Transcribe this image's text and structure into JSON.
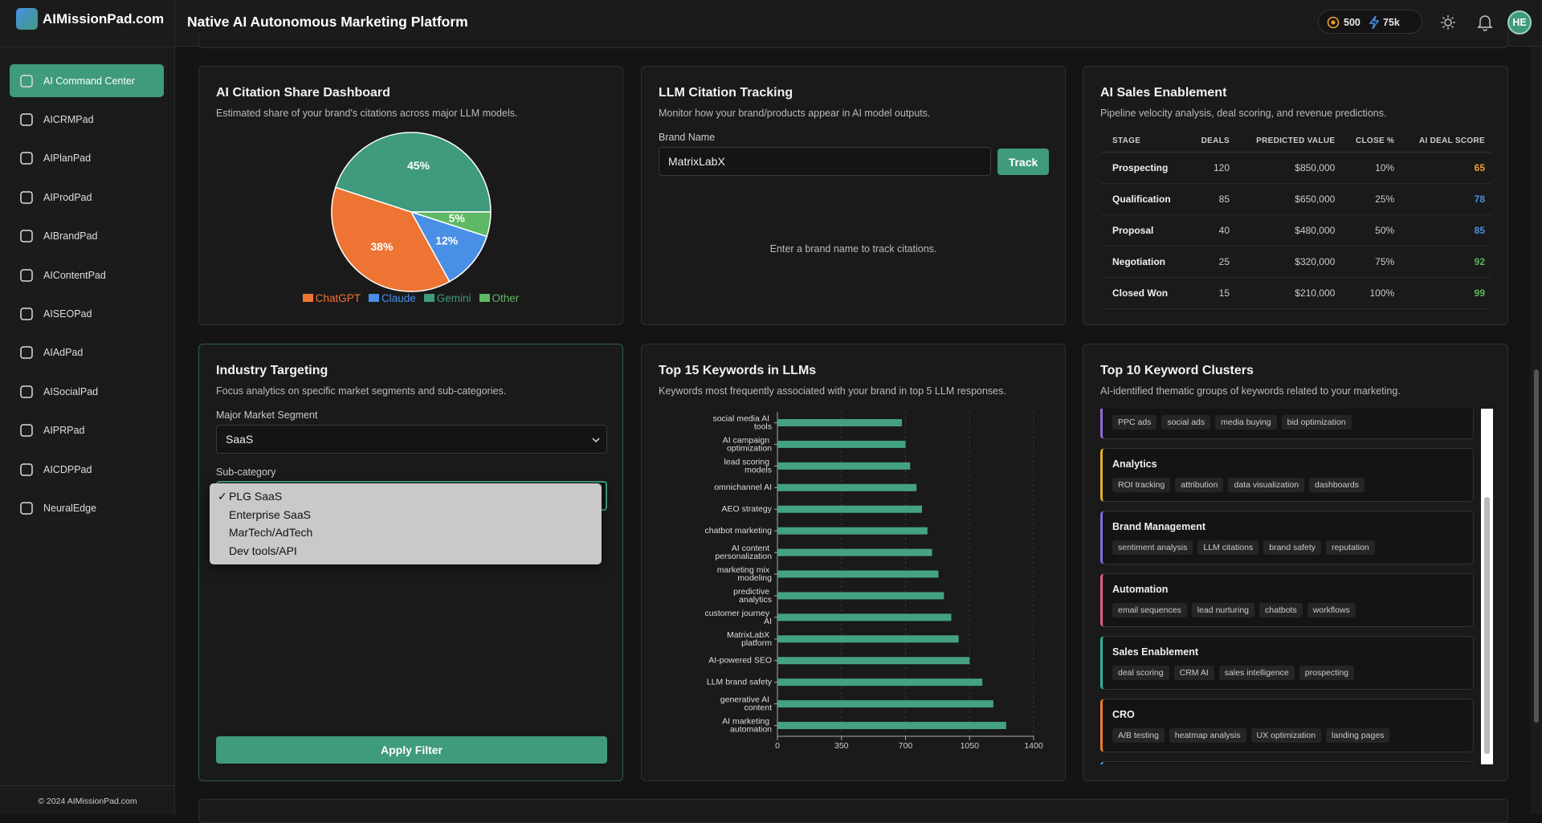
{
  "header": {
    "brand": "AIMissionPad.com",
    "title": "Native AI Autonomous Marketing Platform",
    "credits": "500",
    "energy": "75k",
    "avatar": "HE"
  },
  "sidebar": {
    "items": [
      "AI Command Center",
      "AICRMPad",
      "AIPlanPad",
      "AIProdPad",
      "AIBrandPad",
      "AIContentPad",
      "AISEOPad",
      "AIAdPad",
      "AISocialPad",
      "AIPRPad",
      "AICDPPad",
      "NeuralEdge"
    ],
    "active": 0,
    "footer": "© 2024 AIMissionPad.com"
  },
  "citation_tracking": {
    "title": "LLM Citation Tracking",
    "subtitle": "Monitor how your brand/products appear in AI model outputs.",
    "label": "Brand Name",
    "input": "MatrixLabX",
    "button": "Track",
    "empty": "Enter a brand name to track citations."
  },
  "sales": {
    "title": "AI Sales Enablement",
    "subtitle": "Pipeline velocity analysis, deal scoring, and revenue predictions.",
    "columns": [
      "STAGE",
      "DEALS",
      "PREDICTED VALUE",
      "CLOSE %",
      "AI DEAL SCORE"
    ],
    "rows": [
      [
        "Prospecting",
        "120",
        "$850,000",
        "10%",
        "65"
      ],
      [
        "Qualification",
        "85",
        "$650,000",
        "25%",
        "78"
      ],
      [
        "Proposal",
        "40",
        "$480,000",
        "50%",
        "85"
      ],
      [
        "Negotiation",
        "25",
        "$320,000",
        "75%",
        "92"
      ],
      [
        "Closed Won",
        "15",
        "$210,000",
        "100%",
        "99"
      ]
    ],
    "score_colors": [
      "#f0a030",
      "#4a90e2",
      "#4a90e2",
      "#5cb85c",
      "#5cb85c"
    ]
  },
  "industry": {
    "title": "Industry Targeting",
    "subtitle": "Focus analytics on specific market segments and sub-categories.",
    "segment_label": "Major Market Segment",
    "segment_value": "SaaS",
    "sub_label": "Sub-category",
    "check": "✓",
    "options": [
      "PLG SaaS",
      "Enterprise SaaS",
      "MarTech/AdTech",
      "Dev tools/API"
    ],
    "selected": 0,
    "button": "Apply Filter"
  },
  "clusters": {
    "title": "Top 10 Keyword Clusters",
    "subtitle": "AI-identified thematic groups of keywords related to your marketing.",
    "items": [
      {
        "color": "#8e6ad8",
        "tags": [
          "PPC ads",
          "social ads",
          "media buying",
          "bid optimization"
        ]
      },
      {
        "name": "Analytics",
        "color": "#e0b020",
        "tags": [
          "ROI tracking",
          "attribution",
          "data visualization",
          "dashboards"
        ]
      },
      {
        "name": "Brand Management",
        "color": "#7a6ee0",
        "tags": [
          "sentiment analysis",
          "LLM citations",
          "brand safety",
          "reputation"
        ]
      },
      {
        "name": "Automation",
        "color": "#e05a8a",
        "tags": [
          "email sequences",
          "lead nurturing",
          "chatbots",
          "workflows"
        ]
      },
      {
        "name": "Sales Enablement",
        "color": "#2fb5a0",
        "tags": [
          "deal scoring",
          "CRM AI",
          "sales intelligence",
          "prospecting"
        ]
      },
      {
        "name": "CRO",
        "color": "#f07a2d",
        "tags": [
          "A/B testing",
          "heatmap analysis",
          "UX optimization",
          "landing pages"
        ]
      },
      {
        "color": "#4a90e2",
        "tags": []
      }
    ]
  },
  "chart_data": [
    {
      "type": "pie",
      "title": "AI Citation Share Dashboard",
      "subtitle": "Estimated share of your brand's citations across major LLM models.",
      "categories": [
        "ChatGPT",
        "Claude",
        "Gemini",
        "Other"
      ],
      "values": [
        38,
        12,
        45,
        5
      ],
      "value_labels": [
        "38%",
        "12%",
        "45%",
        "5%"
      ],
      "colors": [
        "#ee7433",
        "#4a8fe6",
        "#3f9a7e",
        "#5fb865"
      ],
      "legend": "bottom"
    },
    {
      "type": "bar",
      "orientation": "horizontal",
      "title": "Top 15 Keywords in LLMs",
      "subtitle": "Keywords most frequently associated with your brand in top 5 LLM responses.",
      "categories": [
        "social media AI tools",
        "AI campaign optimization",
        "lead scoring models",
        "omnichannel AI",
        "AEO strategy",
        "chatbot marketing",
        "AI content personalization",
        "marketing mix modeling",
        "predictive analytics",
        "customer journey AI",
        "MatrixLabX platform",
        "AI-powered SEO",
        "LLM brand safety",
        "generative AI content",
        "AI marketing automation"
      ],
      "values": [
        680,
        700,
        725,
        760,
        790,
        820,
        845,
        880,
        910,
        950,
        990,
        1050,
        1120,
        1180,
        1250
      ],
      "color": "#44a283",
      "xlim": [
        0,
        1400
      ],
      "xticks": [
        0,
        350,
        700,
        1050,
        1400
      ],
      "grid": true
    }
  ]
}
